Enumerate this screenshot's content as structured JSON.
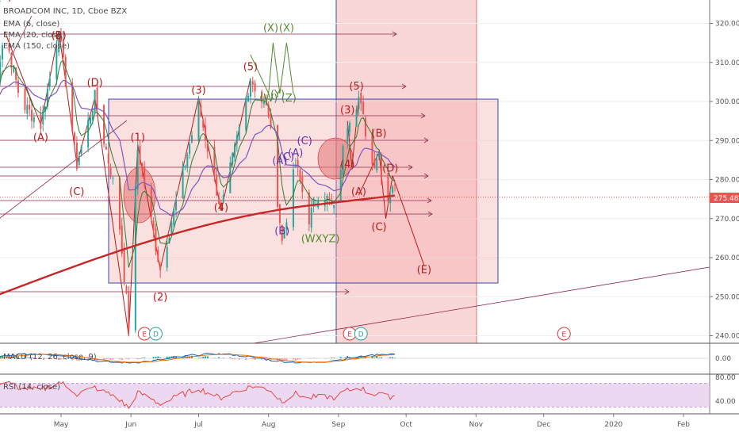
{
  "legend": {
    "symbol": "BROADCOM INC, 1D, Cboe BZX",
    "ema6": "EMA (6, close)",
    "ema20": "EMA (20, close)",
    "ema150": "EMA (150, close)",
    "macd": "MACD (12, 26, close, 9)",
    "rsi": "RSI (14, close)"
  },
  "price_tag": "275.48",
  "colors": {
    "up": "#26a69a",
    "down": "#ef5350",
    "ema_short": "#2e7d32",
    "ema_mid": "#7e57c2",
    "ema_long": "#c62828",
    "zone_fill": "#f8c9c9",
    "wave_red": "#b71c1c",
    "wave_green": "#558b2f",
    "wave_purple": "#5e35b1",
    "trendline": "#8e2a4a",
    "box_border": "#3949ab"
  },
  "chart_data": {
    "type": "candlestick",
    "y_axis_ticks": [
      "320.00",
      "310.00",
      "300.00",
      "290.00",
      "280.00",
      "270.00",
      "260.00",
      "250.00",
      "240.00"
    ],
    "ylim": [
      238,
      327
    ],
    "x_labels": [
      "May",
      "Jun",
      "Jul",
      "Aug",
      "Sep",
      "Oct",
      "Nov",
      "Dec",
      "2020",
      "Feb"
    ],
    "macd_ticks": [
      "0.00"
    ],
    "rsi_ticks": [
      "80.00",
      "40.00"
    ],
    "last_price": 275.48,
    "wave_labels": [
      {
        "text": "(5)",
        "x": "Apr 6",
        "y": 326,
        "color": "red"
      },
      {
        "text": "(B)",
        "x": "Apr 30",
        "y": 316,
        "color": "red"
      },
      {
        "text": "(A)",
        "x": "Apr 22",
        "y": 290,
        "color": "red"
      },
      {
        "text": "(D)",
        "x": "May 16",
        "y": 304,
        "color": "red"
      },
      {
        "text": "(C)",
        "x": "May 8",
        "y": 276,
        "color": "red"
      },
      {
        "text": "(1)",
        "x": "Jun 4",
        "y": 290,
        "color": "red"
      },
      {
        "text": "(2)",
        "x": "Jun 14",
        "y": 249,
        "color": "red"
      },
      {
        "text": "(3)",
        "x": "Jul 1",
        "y": 302,
        "color": "red"
      },
      {
        "text": "(4)",
        "x": "Jul 11",
        "y": 272,
        "color": "red"
      },
      {
        "text": "(5)",
        "x": "Jul 24",
        "y": 308,
        "color": "red"
      },
      {
        "text": "(X)",
        "x": "Aug 2",
        "y": 318,
        "color": "green"
      },
      {
        "text": "(X)",
        "x": "Aug 9",
        "y": 318,
        "color": "green"
      },
      {
        "text": "(W)",
        "x": "Aug 1",
        "y": 300,
        "color": "green"
      },
      {
        "text": "(Y)",
        "x": "Aug 5",
        "y": 301,
        "color": "green"
      },
      {
        "text": "(Z)",
        "x": "Aug 10",
        "y": 300,
        "color": "green"
      },
      {
        "text": "(A)",
        "x": "Aug 6",
        "y": 284,
        "color": "purple"
      },
      {
        "text": "(C)",
        "x": "Aug 9",
        "y": 285,
        "color": "purple"
      },
      {
        "text": "(A)",
        "x": "Aug 13",
        "y": 286,
        "color": "purple"
      },
      {
        "text": "(C)",
        "x": "Aug 17",
        "y": 289,
        "color": "purple"
      },
      {
        "text": "(B)",
        "x": "Aug 7",
        "y": 266,
        "color": "purple"
      },
      {
        "text": "(WXYZ)",
        "x": "Aug 24",
        "y": 264,
        "color": "green"
      },
      {
        "text": "(3)",
        "x": "Sep 5",
        "y": 297,
        "color": "red"
      },
      {
        "text": "(5)",
        "x": "Sep 9",
        "y": 303,
        "color": "red"
      },
      {
        "text": "(4)",
        "x": "Sep 5",
        "y": 283,
        "color": "red"
      },
      {
        "text": "(B)",
        "x": "Sep 19",
        "y": 291,
        "color": "red"
      },
      {
        "text": "(A)",
        "x": "Sep 10",
        "y": 276,
        "color": "red"
      },
      {
        "text": "(D)",
        "x": "Sep 24",
        "y": 282,
        "color": "red"
      },
      {
        "text": "(C)",
        "x": "Sep 19",
        "y": 267,
        "color": "red"
      },
      {
        "text": "(E)",
        "x": "Oct 9",
        "y": 256,
        "color": "red"
      }
    ],
    "event_markers": [
      {
        "text": "E",
        "x": "Jun 7"
      },
      {
        "text": "D",
        "x": "Jun 12"
      },
      {
        "text": "E",
        "x": "Sep 6"
      },
      {
        "text": "D",
        "x": "Sep 11"
      },
      {
        "text": "E",
        "x": "Dec 10"
      }
    ]
  }
}
